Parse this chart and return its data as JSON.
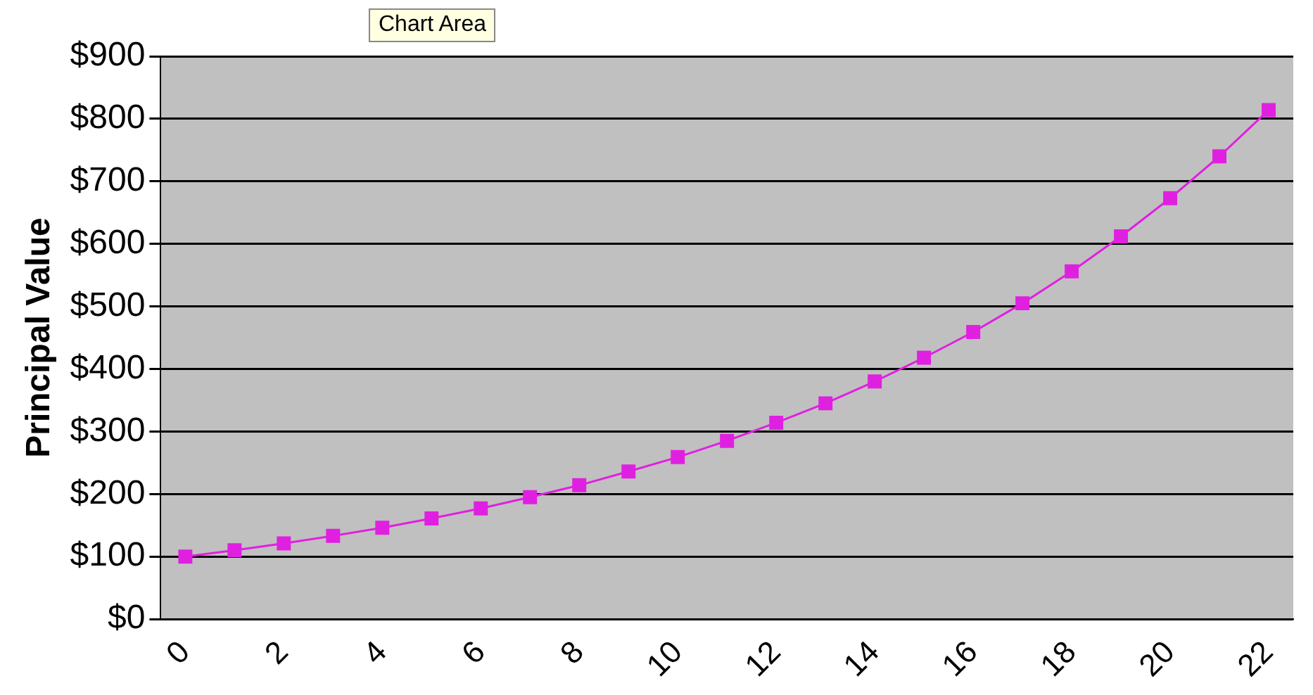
{
  "chart_data": {
    "type": "line",
    "ylabel": "Principal Value",
    "annotations": [
      "Chart Area"
    ],
    "categories": [
      "0",
      null,
      "2",
      null,
      "4",
      null,
      "6",
      null,
      "8",
      null,
      "10",
      null,
      "12",
      null,
      "14",
      null,
      "16",
      null,
      "18",
      null,
      "20",
      null,
      "22"
    ],
    "series": [
      {
        "color": "#e020e0",
        "values": [
          100,
          110,
          121,
          133,
          146,
          161,
          177,
          195,
          214,
          236,
          259,
          285,
          314,
          345,
          380,
          418,
          459,
          505,
          556,
          612,
          673,
          740,
          814
        ]
      }
    ],
    "ylim": [
      0,
      900
    ],
    "yticks": [
      {
        "value": 0,
        "label": "$0"
      },
      {
        "value": 100,
        "label": "$100"
      },
      {
        "value": 200,
        "label": "$200"
      },
      {
        "value": 300,
        "label": "$300"
      },
      {
        "value": 400,
        "label": "$400"
      },
      {
        "value": 500,
        "label": "$500"
      },
      {
        "value": 600,
        "label": "$600"
      },
      {
        "value": 700,
        "label": "$700"
      },
      {
        "value": 800,
        "label": "$800"
      },
      {
        "value": 900,
        "label": "$900"
      }
    ],
    "grid": "y",
    "legend": false,
    "marker": "square",
    "line_style": "solid"
  }
}
